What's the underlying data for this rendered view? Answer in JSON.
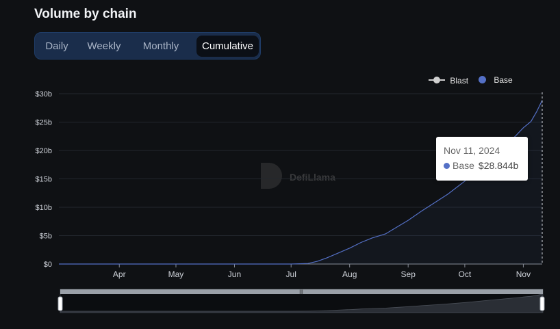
{
  "page": {
    "title": "Volume by chain"
  },
  "tabs": [
    {
      "label": "Daily",
      "active": false
    },
    {
      "label": "Weekly",
      "active": false
    },
    {
      "label": "Monthly",
      "active": false
    },
    {
      "label": "Cumulative",
      "active": true
    }
  ],
  "watermark": {
    "text": "DefiLlama"
  },
  "colors": {
    "base": "#5470c6",
    "blast": "#d0d0d0",
    "tab_active_bg": "#0b0f16",
    "tab_group_bg": "#1a2d4b"
  },
  "tooltip": {
    "date": "Nov 11, 2024",
    "series": "Base",
    "value": "$28.844b"
  },
  "chart_data": {
    "type": "line",
    "xlabel": "",
    "ylabel": "",
    "x_ticks": [
      "Apr",
      "May",
      "Jun",
      "Jul",
      "Aug",
      "Sep",
      "Oct",
      "Nov"
    ],
    "x_tick_dates": [
      "2024-04-01",
      "2024-05-01",
      "2024-06-01",
      "2024-07-01",
      "2024-08-01",
      "2024-09-01",
      "2024-10-01",
      "2024-11-01"
    ],
    "y_ticks": [
      "$0",
      "$5b",
      "$10b",
      "$15b",
      "$20b",
      "$25b",
      "$30b"
    ],
    "y_tick_values": [
      0,
      5,
      10,
      15,
      20,
      25,
      30
    ],
    "ylim": [
      0,
      30
    ],
    "xlim": [
      "2024-02-29",
      "2024-11-11"
    ],
    "grid": true,
    "legend_position": "top-right",
    "series": [
      {
        "name": "Blast",
        "color": "#d0d0d0",
        "x": [],
        "values": []
      },
      {
        "name": "Base",
        "color": "#5470c6",
        "x": [
          "2024-02-29",
          "2024-04-01",
          "2024-05-01",
          "2024-06-01",
          "2024-07-01",
          "2024-07-10",
          "2024-07-15",
          "2024-07-20",
          "2024-07-25",
          "2024-08-01",
          "2024-08-07",
          "2024-08-13",
          "2024-08-20",
          "2024-08-27",
          "2024-09-01",
          "2024-09-08",
          "2024-09-15",
          "2024-09-22",
          "2024-10-01",
          "2024-10-07",
          "2024-10-14",
          "2024-10-21",
          "2024-10-28",
          "2024-11-01",
          "2024-11-05",
          "2024-11-08",
          "2024-11-11"
        ],
        "values": [
          0,
          0,
          0,
          0,
          0,
          0.1,
          0.5,
          1.1,
          1.8,
          2.8,
          3.8,
          4.6,
          5.3,
          6.7,
          7.7,
          9.3,
          10.8,
          12.3,
          14.6,
          16.4,
          18.6,
          20.5,
          22.6,
          24.0,
          25.1,
          26.8,
          28.844
        ]
      }
    ]
  }
}
